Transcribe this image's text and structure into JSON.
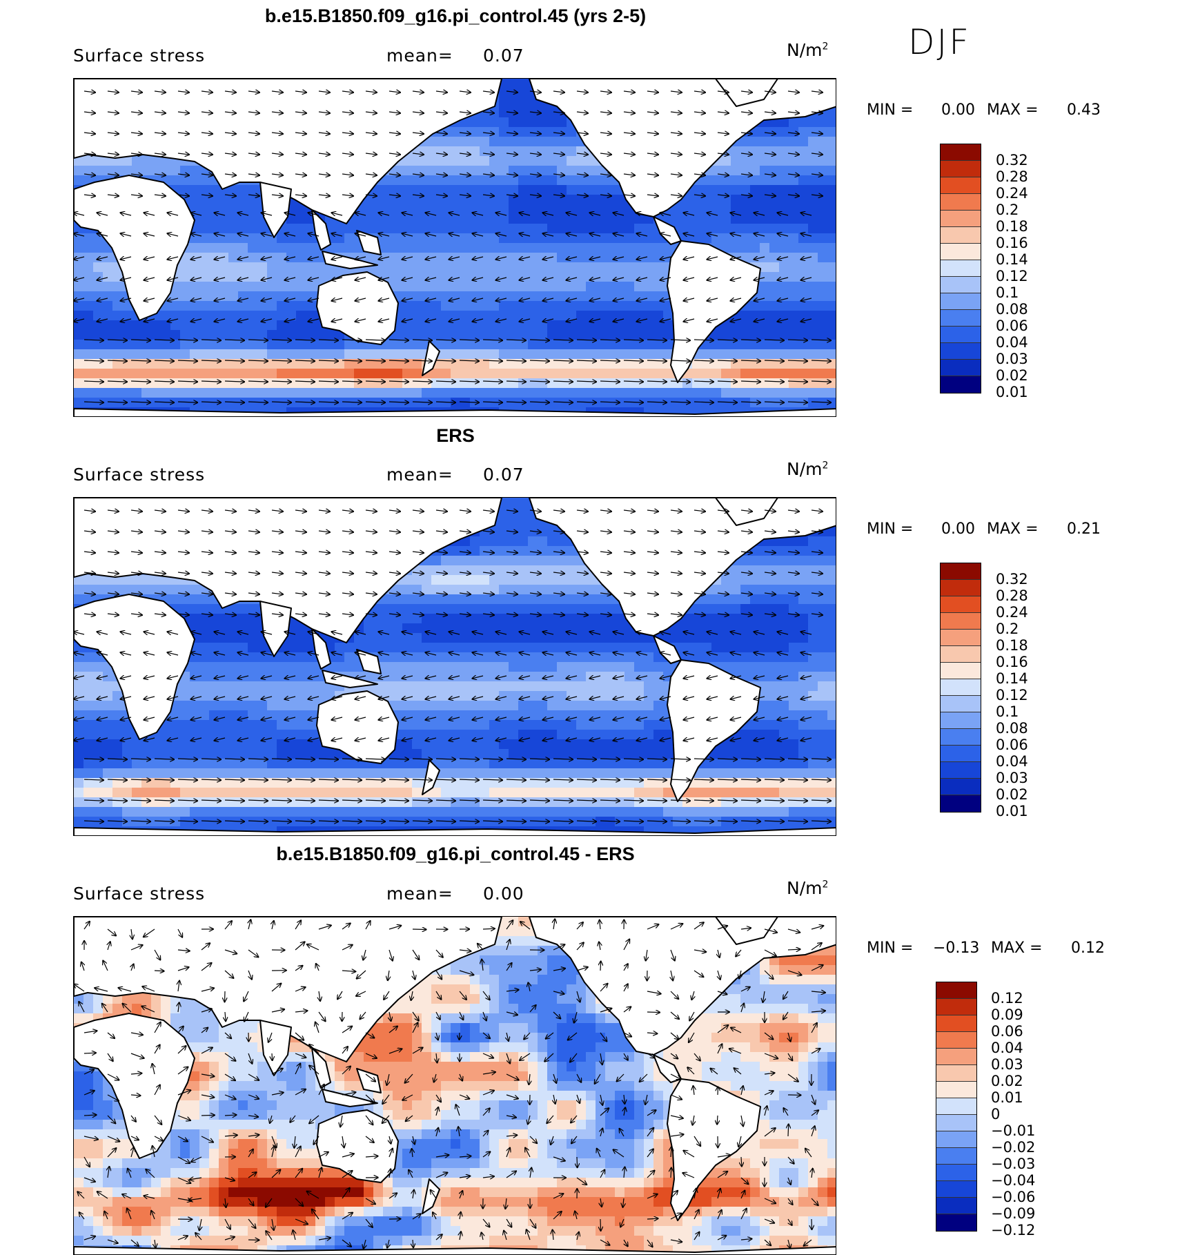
{
  "season": "DJF",
  "colors": {
    "sequential": [
      "#000080",
      "#0a2dbf",
      "#1746d8",
      "#2c62e8",
      "#4a7ff0",
      "#7aa3f5",
      "#a8c3f8",
      "#d2e2fb",
      "#fbe8dc",
      "#f8c8ae",
      "#f5a07d",
      "#f07a4e",
      "#e24f22",
      "#c12c0c",
      "#8b0a00"
    ],
    "diverging": [
      "#000080",
      "#0a2dbf",
      "#1746d8",
      "#2c62e8",
      "#4a7ff0",
      "#7aa3f5",
      "#a8c3f8",
      "#d2e2fb",
      "#fbe8dc",
      "#f8c8ae",
      "#f5a07d",
      "#f07a4e",
      "#e24f22",
      "#c12c0c",
      "#8b0a00"
    ]
  },
  "panels": [
    {
      "title": "b.e15.B1850.f09_g16.pi_control.45 (yrs 2-5)",
      "variable": "Surface stress",
      "mean_label": "mean=",
      "mean_value": "0.07",
      "units": "N/m",
      "units_sup": "2",
      "min_label": "MIN =",
      "min_value": "0.00",
      "max_label": "MAX =",
      "max_value": "0.43",
      "colorbar_ticks": [
        "0.32",
        "0.28",
        "0.24",
        "0.2",
        "0.18",
        "0.16",
        "0.14",
        "0.12",
        "0.1",
        "0.08",
        "0.06",
        "0.04",
        "0.03",
        "0.02",
        "0.01"
      ]
    },
    {
      "title": "ERS",
      "variable": "Surface stress",
      "mean_label": "mean=",
      "mean_value": "0.07",
      "units": "N/m",
      "units_sup": "2",
      "min_label": "MIN =",
      "min_value": "0.00",
      "max_label": "MAX =",
      "max_value": "0.21",
      "colorbar_ticks": [
        "0.32",
        "0.28",
        "0.24",
        "0.2",
        "0.18",
        "0.16",
        "0.14",
        "0.12",
        "0.1",
        "0.08",
        "0.06",
        "0.04",
        "0.03",
        "0.02",
        "0.01"
      ]
    },
    {
      "title": "b.e15.B1850.f09_g16.pi_control.45 - ERS",
      "variable": "Surface stress",
      "mean_label": "mean=",
      "mean_value": "0.00",
      "units": "N/m",
      "units_sup": "2",
      "min_label": "MIN =",
      "min_value": "−0.13",
      "max_label": "MAX =",
      "max_value": "0.12",
      "colorbar_ticks": [
        "0.12",
        "0.09",
        "0.06",
        "0.04",
        "0.03",
        "0.02",
        "0.01",
        "0",
        "−0.01",
        "−0.02",
        "−0.03",
        "−0.04",
        "−0.06",
        "−0.09",
        "−0.12"
      ]
    }
  ],
  "chart_data": [
    {
      "type": "heatmap",
      "title": "b.e15.B1850.f09_g16.pi_control.45 (yrs 2-5)",
      "variable": "Surface stress",
      "units": "N/m^2",
      "mean": 0.07,
      "min": 0.0,
      "max": 0.43,
      "levels": [
        0.01,
        0.02,
        0.03,
        0.04,
        0.06,
        0.08,
        0.1,
        0.12,
        0.14,
        0.16,
        0.18,
        0.2,
        0.24,
        0.28,
        0.32
      ],
      "vectors": true
    },
    {
      "type": "heatmap",
      "title": "ERS",
      "variable": "Surface stress",
      "units": "N/m^2",
      "mean": 0.07,
      "min": 0.0,
      "max": 0.21,
      "levels": [
        0.01,
        0.02,
        0.03,
        0.04,
        0.06,
        0.08,
        0.1,
        0.12,
        0.14,
        0.16,
        0.18,
        0.2,
        0.24,
        0.28,
        0.32
      ],
      "vectors": true
    },
    {
      "type": "heatmap",
      "title": "b.e15.B1850.f09_g16.pi_control.45 - ERS",
      "variable": "Surface stress",
      "units": "N/m^2",
      "mean": 0.0,
      "min": -0.13,
      "max": 0.12,
      "levels": [
        -0.12,
        -0.09,
        -0.06,
        -0.04,
        -0.03,
        -0.02,
        -0.01,
        0,
        0.01,
        0.02,
        0.03,
        0.04,
        0.06,
        0.09,
        0.12
      ],
      "vectors": true
    }
  ]
}
